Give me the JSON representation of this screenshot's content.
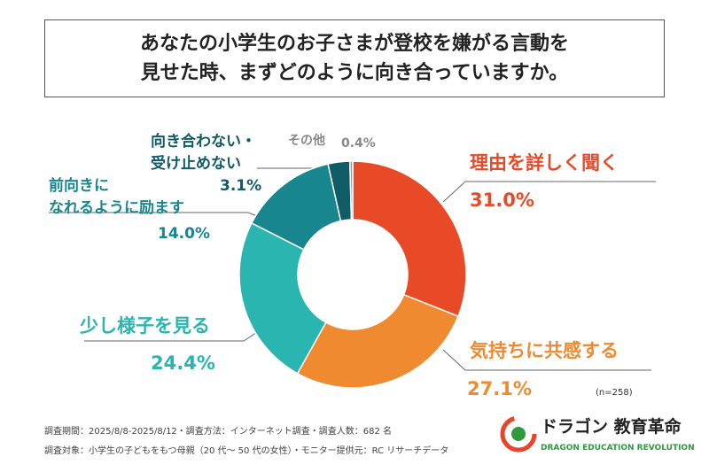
{
  "chart_data": {
    "type": "donut",
    "title": [
      "あなたの小学生のお子さまが登校を嫌がる言動を",
      "見せた時、まずどのように向き合っていますか。"
    ],
    "categories": [
      "理由を詳しく聞く",
      "気持ちに共感する",
      "少し様子を見る",
      "前向きに\nなれるように励ます",
      "向き合わない・\n受け止めない",
      "その他"
    ],
    "values": [
      31.0,
      27.1,
      24.4,
      14.0,
      3.1,
      0.4
    ],
    "value_labels": [
      "31.0%",
      "27.1%",
      "24.4%",
      "14.0%",
      "3.1%",
      "0.4%"
    ],
    "colors": [
      "#e84a27",
      "#f08a30",
      "#2bb5b0",
      "#17868f",
      "#0f5b66",
      "#9a9a9a"
    ],
    "note": "(n=258)"
  },
  "footer": [
    "調査期間：2025/8/8-2025/8/12・調査方法：インターネット調査・調査人数：682 名",
    "調査対象：小学生の子どもをもつ母親（20 代〜 50 代の女性）・モニター提供元：RC リサーチデータ"
  ],
  "logo": {
    "name": "ドラゴン 教育革命",
    "sub": "DRAGON EDUCATION REVOLUTION"
  }
}
